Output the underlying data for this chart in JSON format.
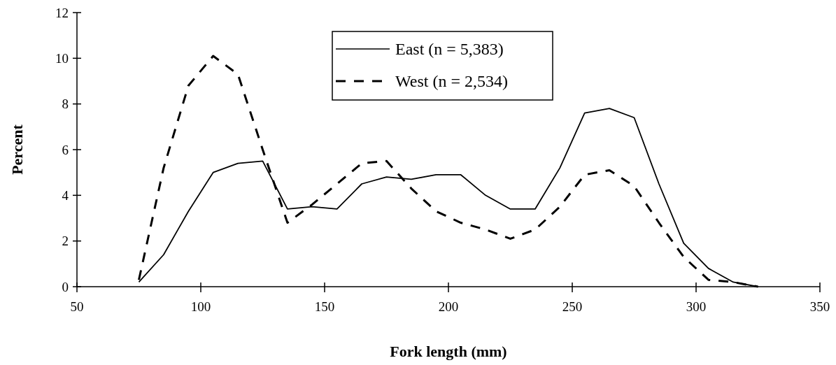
{
  "chart_data": {
    "type": "line",
    "xlabel": "Fork length (mm)",
    "ylabel": "Percent",
    "x": [
      75,
      85,
      95,
      105,
      115,
      125,
      135,
      145,
      155,
      165,
      175,
      185,
      195,
      205,
      215,
      225,
      235,
      245,
      255,
      265,
      275,
      285,
      295,
      305,
      315,
      325
    ],
    "series": [
      {
        "name": "East (n = 5,383)",
        "color": "#000000",
        "line_style": "solid",
        "values": [
          0.2,
          1.4,
          3.3,
          5.0,
          5.4,
          5.5,
          3.4,
          3.5,
          3.4,
          4.5,
          4.8,
          4.7,
          4.9,
          4.9,
          4.0,
          3.4,
          3.4,
          5.2,
          7.6,
          7.8,
          7.4,
          4.5,
          1.9,
          0.8,
          0.2,
          0.0
        ]
      },
      {
        "name": "West (n = 2,534)",
        "color": "#000000",
        "line_style": "dashed",
        "values": [
          0.3,
          5.2,
          8.8,
          10.1,
          9.3,
          6.0,
          2.8,
          3.6,
          4.5,
          5.4,
          5.5,
          4.3,
          3.3,
          2.8,
          2.5,
          2.1,
          2.5,
          3.5,
          4.9,
          5.1,
          4.4,
          2.8,
          1.3,
          0.3,
          0.2,
          0.0
        ]
      }
    ],
    "xlim": [
      50,
      350
    ],
    "xticks": [
      50,
      100,
      150,
      200,
      250,
      300,
      350
    ],
    "ylim": [
      0,
      12
    ],
    "yticks": [
      0,
      2,
      4,
      6,
      8,
      10,
      12
    ],
    "grid": false,
    "legend": "top",
    "marker": "none"
  }
}
